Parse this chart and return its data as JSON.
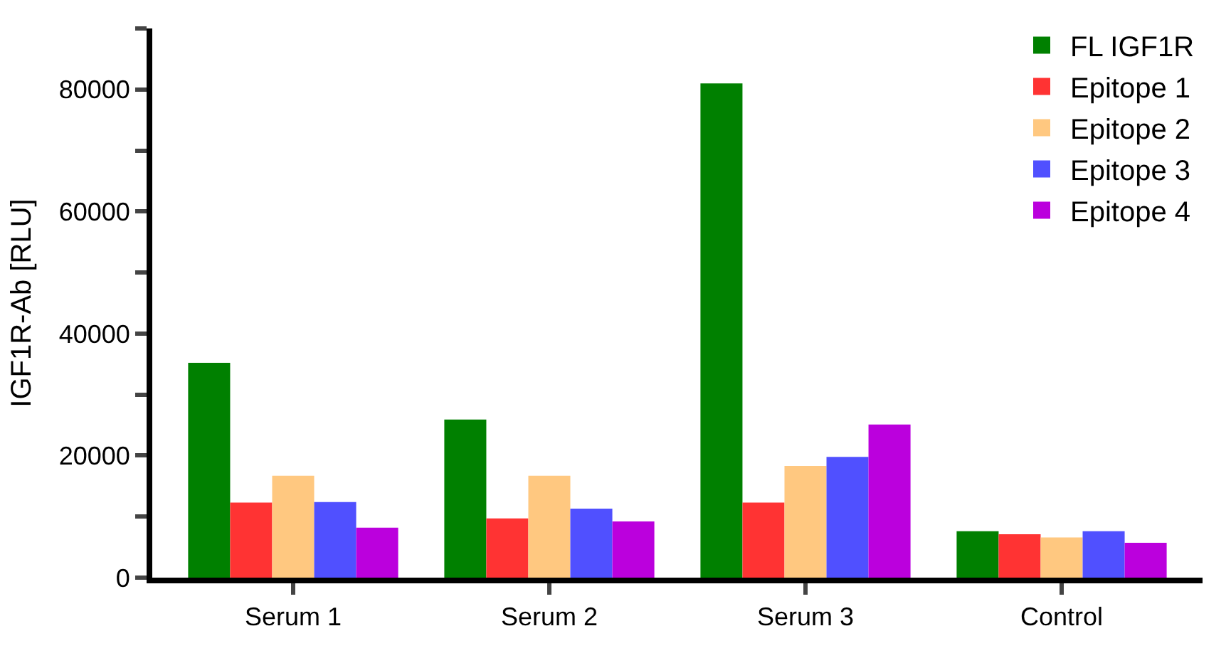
{
  "chart_data": {
    "type": "bar",
    "ylabel": "IGF1R-Ab [RLU]",
    "categories": [
      "Serum 1",
      "Serum 2",
      "Serum 3",
      "Control"
    ],
    "series": [
      {
        "name": "FL IGF1R",
        "color": "#008000",
        "values": [
          35200,
          25900,
          81000,
          7600
        ]
      },
      {
        "name": "Epitope 1",
        "color": "#ff3333",
        "values": [
          12300,
          9700,
          12300,
          7100
        ]
      },
      {
        "name": "Epitope 2",
        "color": "#ffc880",
        "values": [
          16700,
          16700,
          18300,
          6600
        ]
      },
      {
        "name": "Epitope 3",
        "color": "#5050ff",
        "values": [
          12400,
          11300,
          19800,
          7600
        ]
      },
      {
        "name": "Epitope 4",
        "color": "#bb00dd",
        "values": [
          8200,
          9200,
          25100,
          5700
        ]
      }
    ],
    "ylim": [
      0,
      90000
    ],
    "yticks": [
      0,
      {
        "value": 10000,
        "label": null
      },
      20000,
      {
        "value": 30000,
        "label": null
      },
      40000,
      {
        "value": 50000,
        "label": null
      },
      60000,
      {
        "value": 70000,
        "label": null
      },
      80000,
      {
        "value": 90000,
        "label": null
      }
    ],
    "legend": "top right"
  }
}
